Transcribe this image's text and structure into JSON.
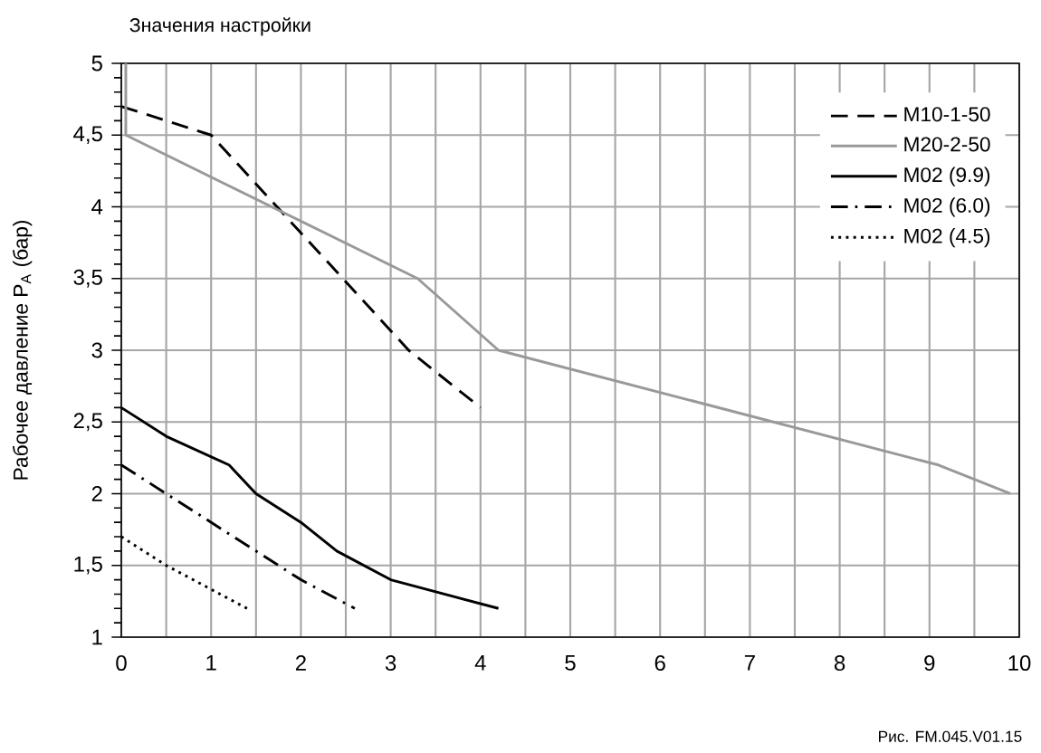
{
  "chart_data": {
    "type": "line",
    "title": "Значения настройки",
    "ylabel": "Рабочее давление P$_{A}$ (бар)",
    "annotations": [
      "Рис. FM.045.V01.15"
    ],
    "xlim": [
      0,
      10
    ],
    "xticks": [
      0,
      1,
      2,
      3,
      4,
      5,
      6,
      7,
      8,
      9,
      10
    ],
    "ylim": [
      1,
      5
    ],
    "yticks": [
      1,
      {
        "value": 1.5,
        "label": "1,5"
      },
      2,
      {
        "value": 2.5,
        "label": "2,5"
      },
      3,
      {
        "value": 3.5,
        "label": "3,5"
      },
      4,
      {
        "value": 4.5,
        "label": "4,5"
      },
      5
    ],
    "grid": true,
    "legend": "top right",
    "marker": "none",
    "series": [
      {
        "name": "M10-1-50",
        "color": "#000000",
        "line_style": "dashed",
        "x": [
          0,
          1,
          3.2,
          4.0
        ],
        "values": [
          4.7,
          4.5,
          3.0,
          2.6
        ]
      },
      {
        "name": "M20-2-50",
        "color": "#999999",
        "line_style": "solid",
        "x": [
          0.05,
          0.05,
          3.3,
          4.2,
          9.1,
          9.9
        ],
        "values": [
          5.0,
          4.5,
          3.5,
          3.0,
          2.2,
          2.0
        ]
      },
      {
        "name": "M02 (9.9)",
        "color": "#000000",
        "line_style": "solid",
        "x": [
          0,
          0.5,
          1.2,
          1.5,
          2.0,
          2.4,
          3.0,
          4.2
        ],
        "values": [
          2.6,
          2.4,
          2.2,
          2.0,
          1.8,
          1.6,
          1.4,
          1.2
        ]
      },
      {
        "name": "M02 (6.0)",
        "color": "#000000",
        "line_style": "dashdot",
        "x": [
          0,
          2.0,
          2.6
        ],
        "values": [
          2.2,
          1.4,
          1.2
        ]
      },
      {
        "name": "M02 (4.5)",
        "color": "#000000",
        "line_style": "dotted",
        "x": [
          0,
          0.5,
          1.4
        ],
        "values": [
          1.7,
          1.5,
          1.2
        ]
      }
    ]
  }
}
